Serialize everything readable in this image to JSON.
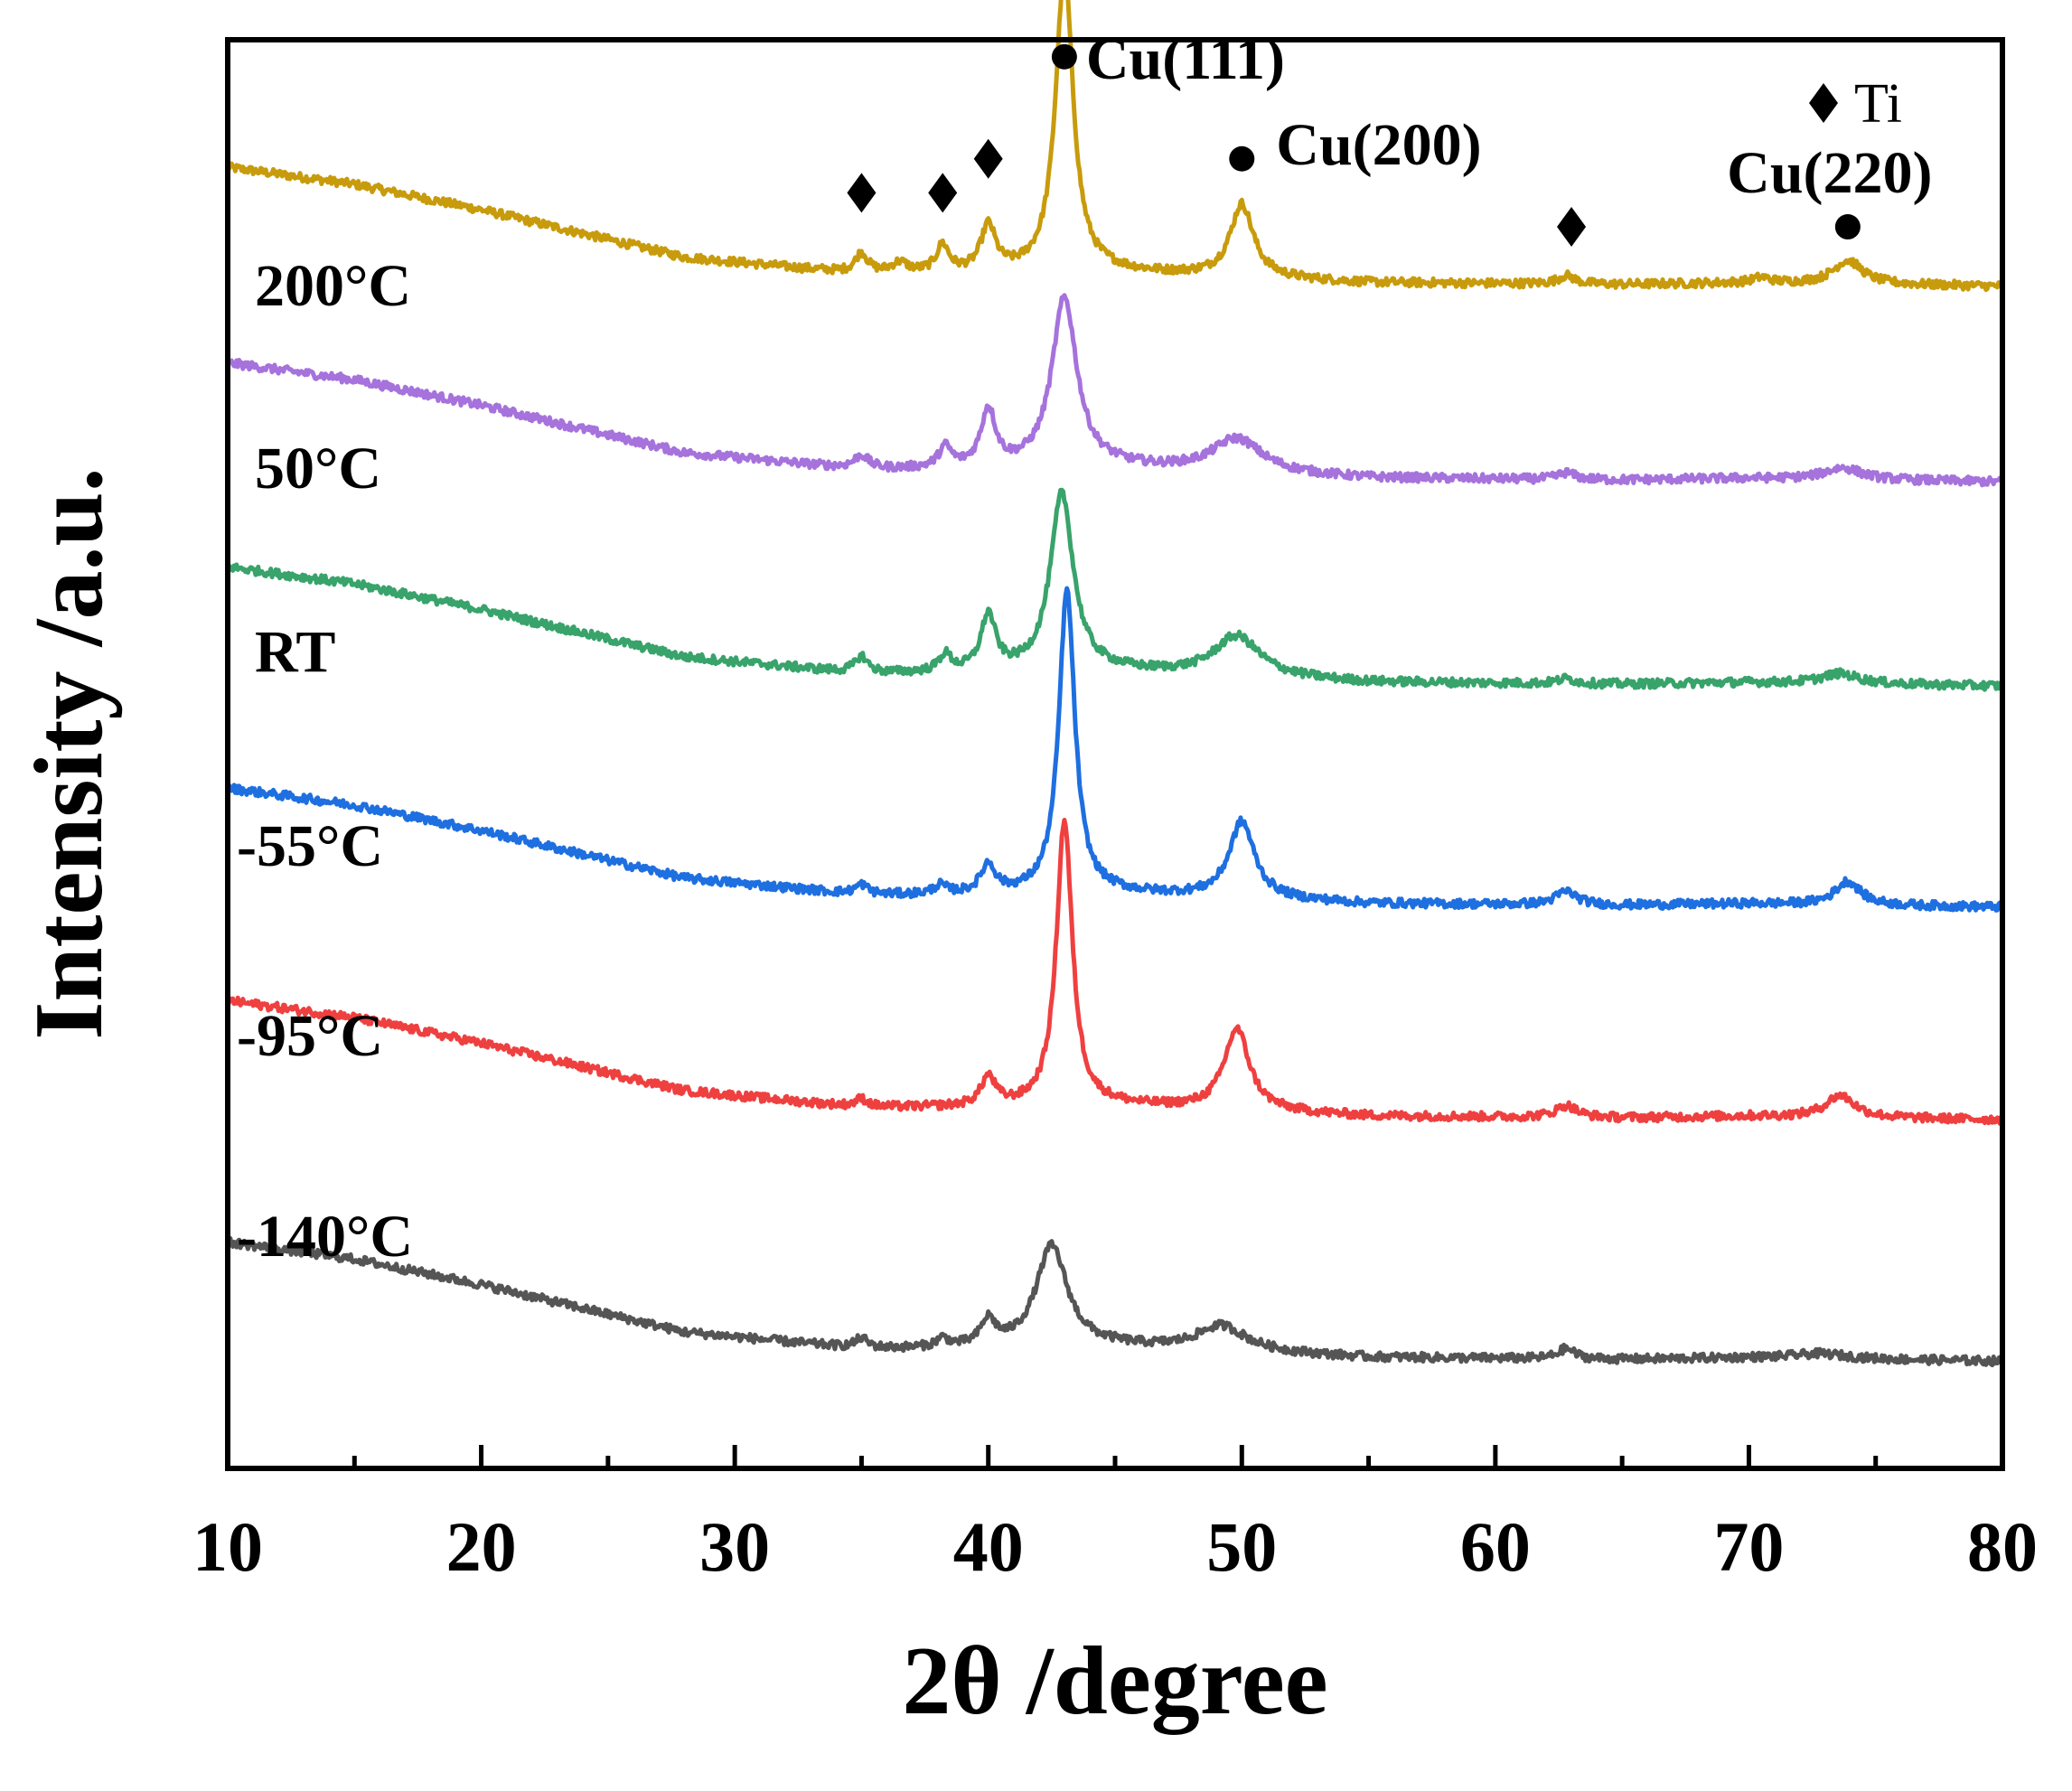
{
  "chart_data": {
    "type": "line",
    "title": "",
    "xlabel": "2θ /degree",
    "ylabel": "Intensity /a.u.",
    "xlim": [
      10,
      80
    ],
    "ylim": [
      0,
      8.4
    ],
    "xticks": [
      10,
      20,
      30,
      40,
      50,
      60,
      70,
      80
    ],
    "grid": false,
    "legend": {
      "label": "Ti",
      "marker": "diamond",
      "placement": "top-right"
    },
    "series": [
      {
        "name": "200°C",
        "color": "#C89B0C",
        "offset": 7.0,
        "baseline": [
          [
            10,
            0.65
          ],
          [
            15,
            0.55
          ],
          [
            20,
            0.4
          ],
          [
            28,
            0.12
          ],
          [
            35,
            0.02
          ],
          [
            40,
            0.02
          ],
          [
            45,
            0.03
          ],
          [
            55,
            -0.03
          ],
          [
            65,
            -0.04
          ],
          [
            70,
            -0.03
          ],
          [
            80,
            -0.05
          ]
        ],
        "peaks": [
          [
            35.0,
            0.12,
            0.3
          ],
          [
            36.5,
            0.06,
            0.4
          ],
          [
            38.2,
            0.16,
            0.3
          ],
          [
            40.0,
            0.27,
            0.35
          ],
          [
            43.0,
            1.78,
            0.42
          ],
          [
            50.0,
            0.43,
            0.55
          ],
          [
            62.8,
            0.05,
            0.4
          ],
          [
            70.5,
            0.03,
            0.4
          ],
          [
            73.9,
            0.14,
            0.7
          ]
        ]
      },
      {
        "name": "50°C",
        "color": "#A672DC",
        "offset": 5.85,
        "baseline": [
          [
            10,
            0.65
          ],
          [
            15,
            0.55
          ],
          [
            20,
            0.4
          ],
          [
            28,
            0.12
          ],
          [
            35,
            0.02
          ],
          [
            40,
            0.02
          ],
          [
            45,
            0.03
          ],
          [
            55,
            -0.03
          ],
          [
            65,
            -0.04
          ],
          [
            70,
            -0.03
          ],
          [
            80,
            -0.05
          ]
        ],
        "peaks": [
          [
            35.0,
            0.08,
            0.35
          ],
          [
            38.3,
            0.12,
            0.3
          ],
          [
            40.0,
            0.34,
            0.35
          ],
          [
            43.0,
            1.0,
            0.6
          ],
          [
            49.8,
            0.2,
            1.2
          ],
          [
            62.8,
            0.04,
            0.4
          ],
          [
            73.7,
            0.07,
            0.9
          ]
        ]
      },
      {
        "name": "RT",
        "color": "#38A36B",
        "offset": 4.65,
        "baseline": [
          [
            10,
            0.65
          ],
          [
            15,
            0.55
          ],
          [
            20,
            0.4
          ],
          [
            28,
            0.12
          ],
          [
            35,
            0.02
          ],
          [
            40,
            0.02
          ],
          [
            45,
            0.03
          ],
          [
            55,
            -0.03
          ],
          [
            65,
            -0.04
          ],
          [
            70,
            -0.03
          ],
          [
            80,
            -0.05
          ]
        ],
        "peaks": [
          [
            35.0,
            0.1,
            0.3
          ],
          [
            38.3,
            0.1,
            0.3
          ],
          [
            40.0,
            0.33,
            0.35
          ],
          [
            42.9,
            1.05,
            0.55
          ],
          [
            49.8,
            0.24,
            1.1
          ],
          [
            62.8,
            0.03,
            0.4
          ],
          [
            73.6,
            0.06,
            0.9
          ]
        ]
      },
      {
        "name": "-55°C",
        "color": "#1E6FE0",
        "offset": 3.35,
        "baseline": [
          [
            10,
            0.65
          ],
          [
            15,
            0.55
          ],
          [
            20,
            0.4
          ],
          [
            28,
            0.12
          ],
          [
            35,
            0.02
          ],
          [
            40,
            0.02
          ],
          [
            45,
            0.03
          ],
          [
            55,
            -0.03
          ],
          [
            65,
            -0.04
          ],
          [
            70,
            -0.03
          ],
          [
            80,
            -0.05
          ]
        ],
        "peaks": [
          [
            35.0,
            0.06,
            0.3
          ],
          [
            38.1,
            0.05,
            0.3
          ],
          [
            40.0,
            0.17,
            0.35
          ],
          [
            43.1,
            1.78,
            0.38
          ],
          [
            50.0,
            0.45,
            0.6
          ],
          [
            62.8,
            0.08,
            0.5
          ],
          [
            73.9,
            0.14,
            0.6
          ]
        ]
      },
      {
        "name": "-95°C",
        "color": "#EF4040",
        "offset": 2.1,
        "baseline": [
          [
            10,
            0.65
          ],
          [
            15,
            0.55
          ],
          [
            20,
            0.4
          ],
          [
            28,
            0.12
          ],
          [
            35,
            0.02
          ],
          [
            40,
            0.02
          ],
          [
            45,
            0.03
          ],
          [
            55,
            -0.03
          ],
          [
            65,
            -0.04
          ],
          [
            70,
            -0.03
          ],
          [
            80,
            -0.05
          ]
        ],
        "peaks": [
          [
            35.0,
            0.05,
            0.3
          ],
          [
            40.0,
            0.17,
            0.35
          ],
          [
            43.0,
            1.68,
            0.38
          ],
          [
            49.8,
            0.48,
            0.6
          ],
          [
            62.8,
            0.07,
            0.5
          ],
          [
            73.6,
            0.13,
            0.7
          ]
        ]
      },
      {
        "name": "-140°C",
        "color": "#555555",
        "offset": 0.68,
        "baseline": [
          [
            10,
            0.65
          ],
          [
            15,
            0.55
          ],
          [
            20,
            0.4
          ],
          [
            28,
            0.12
          ],
          [
            35,
            0.02
          ],
          [
            40,
            0.02
          ],
          [
            45,
            0.03
          ],
          [
            55,
            -0.03
          ],
          [
            65,
            -0.04
          ],
          [
            70,
            -0.03
          ],
          [
            80,
            -0.05
          ]
        ],
        "peaks": [
          [
            35.0,
            0.06,
            0.3
          ],
          [
            38.2,
            0.05,
            0.3
          ],
          [
            40.0,
            0.15,
            0.35
          ],
          [
            42.5,
            0.6,
            0.75
          ],
          [
            49.2,
            0.15,
            1.2
          ],
          [
            62.8,
            0.06,
            0.4
          ],
          [
            72.8,
            0.03,
            1.3
          ]
        ]
      }
    ],
    "annotations": [
      {
        "text": "Cu(111)",
        "marker": "circle",
        "x": 43.0,
        "y": 8.3
      },
      {
        "text": "Cu(200)",
        "marker": "circle",
        "x": 50.0,
        "y": 7.7
      },
      {
        "text": "Cu(220)",
        "marker": "circle",
        "x": 73.9,
        "y": 7.3
      },
      {
        "marker": "diamond",
        "x": 35.0,
        "y": 7.5
      },
      {
        "marker": "diamond",
        "x": 38.2,
        "y": 7.5
      },
      {
        "marker": "diamond",
        "x": 40.0,
        "y": 7.7
      },
      {
        "marker": "diamond",
        "x": 63.0,
        "y": 7.3
      }
    ]
  }
}
